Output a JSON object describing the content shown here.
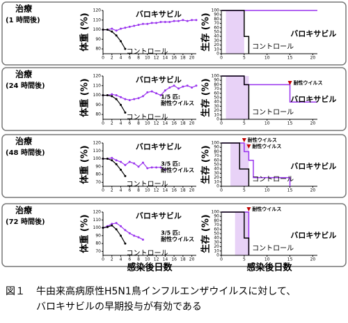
{
  "panels": [
    {
      "label": "治療",
      "time": "(1 時間後)"
    },
    {
      "label": "治療",
      "time": "(24 時間後)"
    },
    {
      "label": "治療",
      "time": "(48 時間後)"
    },
    {
      "label": "治療",
      "time": "(72 時間後)"
    }
  ],
  "chart_data": [
    {
      "type": "line",
      "ylabel": "体重 (%)",
      "xlim": [
        0,
        21
      ],
      "xticks": [
        0,
        2,
        4,
        6,
        8,
        10,
        12,
        14,
        16,
        18,
        20
      ],
      "ylim": [
        75,
        120
      ],
      "yticks": [
        80,
        90,
        100,
        110,
        120
      ],
      "series": [
        {
          "name": "バロキサビル",
          "color": "#9933ee",
          "x": [
            0,
            1,
            2,
            3,
            4,
            5,
            6,
            7,
            8,
            9,
            10,
            11,
            12,
            13,
            14,
            15,
            16,
            17,
            18,
            19,
            20,
            21
          ],
          "values": [
            100,
            100,
            101,
            99,
            101,
            102,
            103,
            104,
            105,
            106,
            106,
            107,
            107,
            108,
            108,
            108,
            109,
            109,
            110,
            109,
            110,
            110
          ]
        },
        {
          "name": "コントロール",
          "color": "#000000",
          "x": [
            0,
            1,
            2,
            3,
            4,
            5
          ],
          "values": [
            100,
            100,
            98,
            94,
            88,
            80
          ]
        }
      ]
    },
    {
      "type": "step",
      "ylabel": "生存 (%)",
      "xlim": [
        0,
        21
      ],
      "xticks": [
        0,
        5,
        10,
        15,
        20
      ],
      "ylim": [
        0,
        100
      ],
      "yticks": [
        0,
        10,
        20,
        30,
        40,
        50,
        60,
        70,
        80,
        90,
        100
      ],
      "shade": [
        1,
        5
      ],
      "series": [
        {
          "name": "バロキサビル",
          "color": "#9933ee",
          "x": [
            0,
            21
          ],
          "values": [
            100,
            100
          ]
        },
        {
          "name": "コントロール",
          "color": "#000000",
          "x": [
            0,
            5,
            6
          ],
          "values": [
            100,
            40,
            0
          ]
        }
      ]
    },
    {
      "type": "line",
      "ylabel": "体重 (%)",
      "xlim": [
        0,
        21
      ],
      "xticks": [
        0,
        2,
        4,
        6,
        8,
        10,
        12,
        14,
        16,
        18,
        20
      ],
      "ylim": [
        75,
        120
      ],
      "yticks": [
        80,
        90,
        100,
        110,
        120
      ],
      "note": [
        "1/5 匹:",
        "耐性ウイルス"
      ],
      "series": [
        {
          "name": "バロキサビル",
          "color": "#9933ee",
          "x": [
            0,
            1,
            2,
            3,
            4,
            5,
            6,
            7,
            8,
            9,
            10,
            11,
            12,
            13,
            14,
            15,
            16,
            17,
            18,
            19,
            20,
            21
          ],
          "values": [
            100,
            100,
            101,
            100,
            98,
            96,
            95,
            96,
            97,
            99,
            103,
            104,
            102,
            100,
            105,
            108,
            110,
            107,
            109,
            110,
            108,
            110
          ]
        },
        {
          "name": "コントロール",
          "color": "#000000",
          "x": [
            0,
            1,
            2,
            3,
            4,
            5
          ],
          "values": [
            100,
            100,
            99,
            96,
            90,
            82
          ]
        }
      ]
    },
    {
      "type": "step",
      "ylabel": "生存 (%)",
      "xlim": [
        0,
        21
      ],
      "xticks": [
        0,
        5,
        10,
        15,
        20
      ],
      "ylim": [
        0,
        100
      ],
      "yticks": [
        0,
        10,
        20,
        30,
        40,
        50,
        60,
        70,
        80,
        90,
        100
      ],
      "shade": [
        1,
        6
      ],
      "resistance": [
        {
          "day": 15,
          "label": "耐性ウイルス"
        }
      ],
      "series": [
        {
          "name": "バロキサビル",
          "color": "#9933ee",
          "x": [
            0,
            5,
            15,
            21
          ],
          "values": [
            100,
            80,
            40,
            40
          ]
        },
        {
          "name": "コントロール",
          "color": "#000000",
          "x": [
            0,
            5,
            6
          ],
          "values": [
            100,
            80,
            0
          ]
        }
      ]
    },
    {
      "type": "line",
      "ylabel": "体重 (%)",
      "xlim": [
        0,
        21
      ],
      "xticks": [
        0,
        2,
        4,
        6,
        8,
        10,
        12,
        14,
        16,
        18,
        20
      ],
      "ylim": [
        65,
        120
      ],
      "yticks": [
        70,
        80,
        90,
        100,
        110,
        120
      ],
      "note": [
        "3/5 匹:",
        "耐性ウイルス"
      ],
      "series": [
        {
          "name": "バロキサビル",
          "color": "#9933ee",
          "x": [
            0,
            1,
            2,
            3,
            4,
            5,
            6,
            7,
            8,
            9,
            10,
            11,
            12,
            13,
            14
          ],
          "values": [
            100,
            100,
            101,
            98,
            96,
            92,
            96,
            94,
            90,
            95,
            88,
            89,
            89,
            89,
            86
          ]
        },
        {
          "name": "コントロール",
          "color": "#000000",
          "x": [
            0,
            1,
            2,
            3,
            4,
            5
          ],
          "values": [
            100,
            100,
            98,
            93,
            86,
            78
          ]
        }
      ]
    },
    {
      "type": "step",
      "ylabel": "生存 (%)",
      "xlim": [
        0,
        21
      ],
      "xticks": [
        0,
        5,
        10,
        15,
        20
      ],
      "ylim": [
        0,
        100
      ],
      "yticks": [
        0,
        10,
        20,
        30,
        40,
        50,
        60,
        70,
        80,
        90,
        100
      ],
      "shade": [
        2,
        6
      ],
      "resistance": [
        {
          "day": 5,
          "label": "耐性ウイルス"
        },
        {
          "day": 6,
          "label": "耐性ウイルス"
        }
      ],
      "series": [
        {
          "name": "バロキサビル",
          "color": "#9933ee",
          "x": [
            0,
            5,
            6,
            7,
            15
          ],
          "values": [
            100,
            80,
            60,
            20,
            0
          ]
        },
        {
          "name": "コントロール",
          "color": "#000000",
          "x": [
            0,
            4,
            6
          ],
          "values": [
            100,
            40,
            0
          ]
        }
      ]
    },
    {
      "type": "line",
      "ylabel": "体重 (%)",
      "xlabel": "感染後日数",
      "xlim": [
        0,
        21
      ],
      "xticks": [
        0,
        2,
        4,
        6,
        8,
        10,
        12,
        14,
        16,
        18,
        20
      ],
      "ylim": [
        65,
        120
      ],
      "yticks": [
        70,
        80,
        90,
        100,
        110,
        120
      ],
      "note": [
        "3/5 匹:",
        "耐性ウイルス"
      ],
      "series": [
        {
          "name": "バロキサビル",
          "color": "#9933ee",
          "x": [
            0,
            1,
            2,
            3,
            4,
            5,
            6,
            7,
            8,
            9
          ],
          "values": [
            100,
            102,
            105,
            106,
            102,
            97,
            93,
            90,
            88,
            85
          ]
        },
        {
          "name": "コントロール",
          "color": "#000000",
          "x": [
            0,
            1,
            2,
            3,
            4,
            5
          ],
          "values": [
            100,
            101,
            103,
            98,
            90,
            80
          ]
        }
      ]
    },
    {
      "type": "step",
      "ylabel": "生存 (%)",
      "xlabel": "感染後日数",
      "xlim": [
        0,
        21
      ],
      "xticks": [
        0,
        5,
        10,
        15,
        20
      ],
      "ylim": [
        0,
        100
      ],
      "yticks": [
        0,
        10,
        20,
        30,
        40,
        50,
        60,
        70,
        80,
        90,
        100
      ],
      "shade": [
        3,
        6
      ],
      "resistance": [
        {
          "day": 6,
          "label": "耐性ウイルス"
        }
      ],
      "series": [
        {
          "name": "バロキサビル",
          "color": "#9933ee",
          "x": [
            0,
            6
          ],
          "values": [
            100,
            0
          ]
        },
        {
          "name": "コントロール",
          "color": "#000000",
          "x": [
            0,
            5,
            6
          ],
          "values": [
            100,
            40,
            0
          ]
        }
      ]
    }
  ],
  "caption": {
    "number": "図１",
    "lines": [
      "牛由来高病原性H5N1鳥インフルエンザウイルスに対して、",
      "バロキサビルの早期投与が有効である"
    ]
  }
}
